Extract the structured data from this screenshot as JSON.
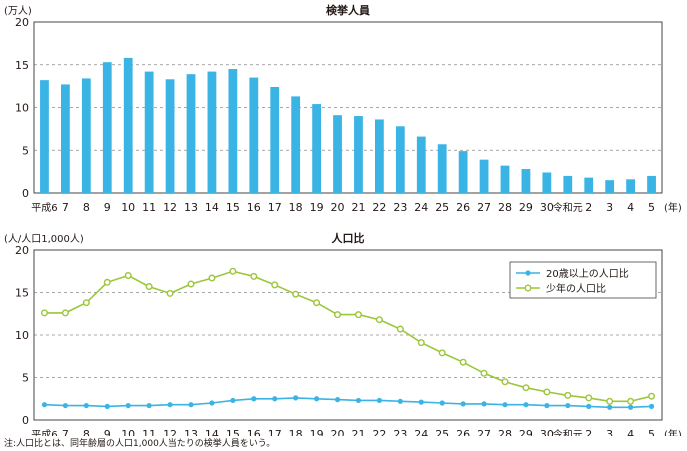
{
  "chart_data": [
    {
      "type": "bar",
      "title": "検挙人員",
      "ylabel": "(万人)",
      "year_unit": "(年)",
      "categories": [
        "平成6",
        "7",
        "8",
        "9",
        "10",
        "11",
        "12",
        "13",
        "14",
        "15",
        "16",
        "17",
        "18",
        "19",
        "20",
        "21",
        "22",
        "23",
        "24",
        "25",
        "26",
        "27",
        "28",
        "29",
        "30",
        "令和元",
        "2",
        "3",
        "4",
        "5"
      ],
      "values": [
        13.2,
        12.7,
        13.4,
        15.3,
        15.8,
        14.2,
        13.3,
        13.9,
        14.2,
        14.5,
        13.5,
        12.4,
        11.3,
        10.4,
        9.1,
        9.0,
        8.6,
        7.8,
        6.6,
        5.7,
        4.9,
        3.9,
        3.2,
        2.8,
        2.4,
        2.0,
        1.8,
        1.5,
        1.6,
        2.0
      ],
      "ylim": [
        0,
        20
      ],
      "yticks": [
        0,
        5,
        10,
        15,
        20
      ],
      "bar_color": "#3ab4e5",
      "grid": true
    },
    {
      "type": "line",
      "title": "人口比",
      "ylabel": "(人/人口1,000人)",
      "year_unit": "(年)",
      "categories": [
        "平成6",
        "7",
        "8",
        "9",
        "10",
        "11",
        "12",
        "13",
        "14",
        "15",
        "16",
        "17",
        "18",
        "19",
        "20",
        "21",
        "22",
        "23",
        "24",
        "25",
        "26",
        "27",
        "28",
        "29",
        "30",
        "令和元",
        "2",
        "3",
        "4",
        "5"
      ],
      "ylim": [
        0,
        20
      ],
      "yticks": [
        0,
        5,
        10,
        15,
        20
      ],
      "grid": true,
      "legend_position": "top-right",
      "series": [
        {
          "name": "20歳以上の人口比",
          "color": "#3ab4e5",
          "values": [
            1.8,
            1.7,
            1.7,
            1.6,
            1.7,
            1.7,
            1.8,
            1.8,
            2.0,
            2.3,
            2.5,
            2.5,
            2.6,
            2.5,
            2.4,
            2.3,
            2.3,
            2.2,
            2.1,
            2.0,
            1.9,
            1.9,
            1.8,
            1.8,
            1.7,
            1.7,
            1.6,
            1.5,
            1.5,
            1.6
          ]
        },
        {
          "name": "少年の人口比",
          "color": "#9cc63b",
          "values": [
            12.6,
            12.6,
            13.8,
            16.2,
            17.0,
            15.7,
            14.9,
            16.0,
            16.7,
            17.5,
            16.9,
            15.9,
            14.8,
            13.8,
            12.4,
            12.4,
            11.8,
            10.7,
            9.1,
            7.9,
            6.8,
            5.5,
            4.5,
            3.8,
            3.3,
            2.9,
            2.6,
            2.2,
            2.2,
            2.8
          ]
        }
      ]
    }
  ],
  "note": "注:人口比とは、同年齢層の人口1,000人当たりの検挙人員をいう。"
}
